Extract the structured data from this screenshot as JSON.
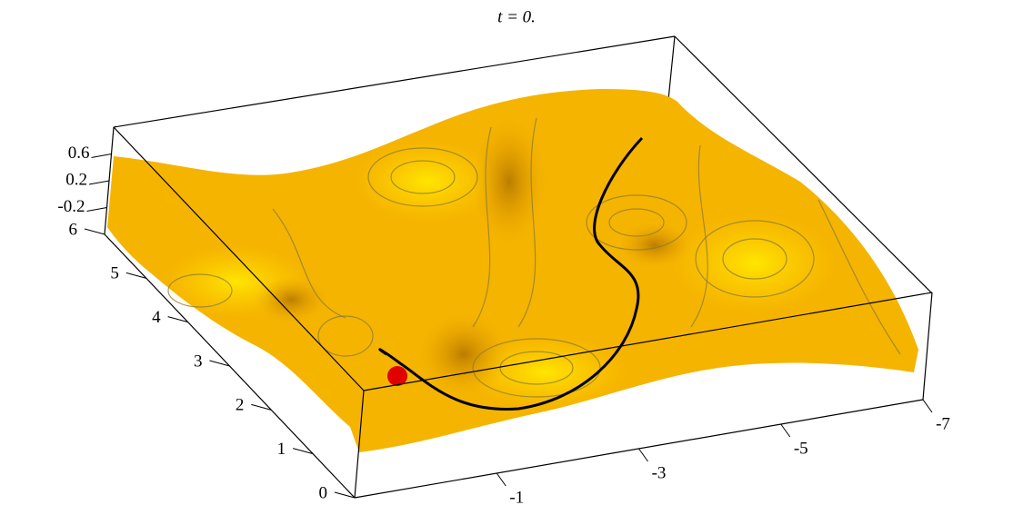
{
  "chart_data": {
    "type": "surface3d",
    "title": "t = 0.",
    "xlim": [
      1,
      -7
    ],
    "ylim": [
      0,
      6
    ],
    "zlim": [
      -0.6,
      1
    ],
    "xticks": [
      -1,
      -3,
      -5,
      -7
    ],
    "yticks": [
      0,
      1,
      2,
      3,
      4,
      5,
      6
    ],
    "zticks": [
      0.6,
      0.2,
      -0.2
    ]
  }
}
